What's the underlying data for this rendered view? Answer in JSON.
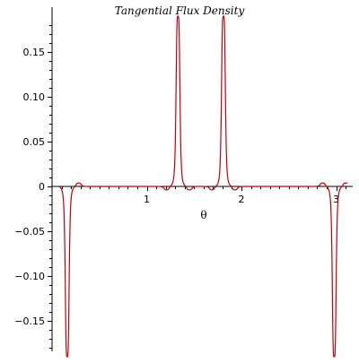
{
  "chart_data": {
    "type": "line",
    "title": "Tangential Flux Density",
    "xlabel": "θ",
    "ylabel": "",
    "xlim": [
      0,
      3.14159
    ],
    "ylim": [
      -0.19,
      0.19
    ],
    "grid": false,
    "xticks": [
      {
        "value": 1,
        "label": "1"
      },
      {
        "value": 2,
        "label": "2"
      },
      {
        "value": 3,
        "label": "3"
      }
    ],
    "yticks": [
      {
        "value": 0.15,
        "label": "0.15"
      },
      {
        "value": 0.1,
        "label": "0.10"
      },
      {
        "value": 0.05,
        "label": "0.05"
      },
      {
        "value": 0,
        "label": "0"
      },
      {
        "value": -0.05,
        "label": "−0.05"
      },
      {
        "value": -0.1,
        "label": "−0.10"
      },
      {
        "value": -0.15,
        "label": "−0.15"
      }
    ],
    "series": [
      {
        "name": "",
        "color": "#c0000a",
        "peaks": [
          {
            "center": 0.16,
            "amplitude": -0.19,
            "width": 0.022
          },
          {
            "center": 0.28,
            "amplitude": 0.004,
            "width": 0.03
          },
          {
            "center": 0.04,
            "amplitude": 0.004,
            "width": 0.03
          },
          {
            "center": 1.33,
            "amplitude": 0.19,
            "width": 0.022
          },
          {
            "center": 1.21,
            "amplitude": -0.004,
            "width": 0.03
          },
          {
            "center": 1.45,
            "amplitude": -0.004,
            "width": 0.03
          },
          {
            "center": 1.81,
            "amplitude": 0.19,
            "width": 0.022
          },
          {
            "center": 1.69,
            "amplitude": -0.004,
            "width": 0.03
          },
          {
            "center": 1.93,
            "amplitude": -0.004,
            "width": 0.03
          },
          {
            "center": 2.98,
            "amplitude": -0.19,
            "width": 0.022
          },
          {
            "center": 2.86,
            "amplitude": 0.004,
            "width": 0.03
          },
          {
            "center": 3.1,
            "amplitude": 0.004,
            "width": 0.03
          }
        ],
        "x_range": [
          0.08,
          3.12
        ]
      }
    ]
  }
}
